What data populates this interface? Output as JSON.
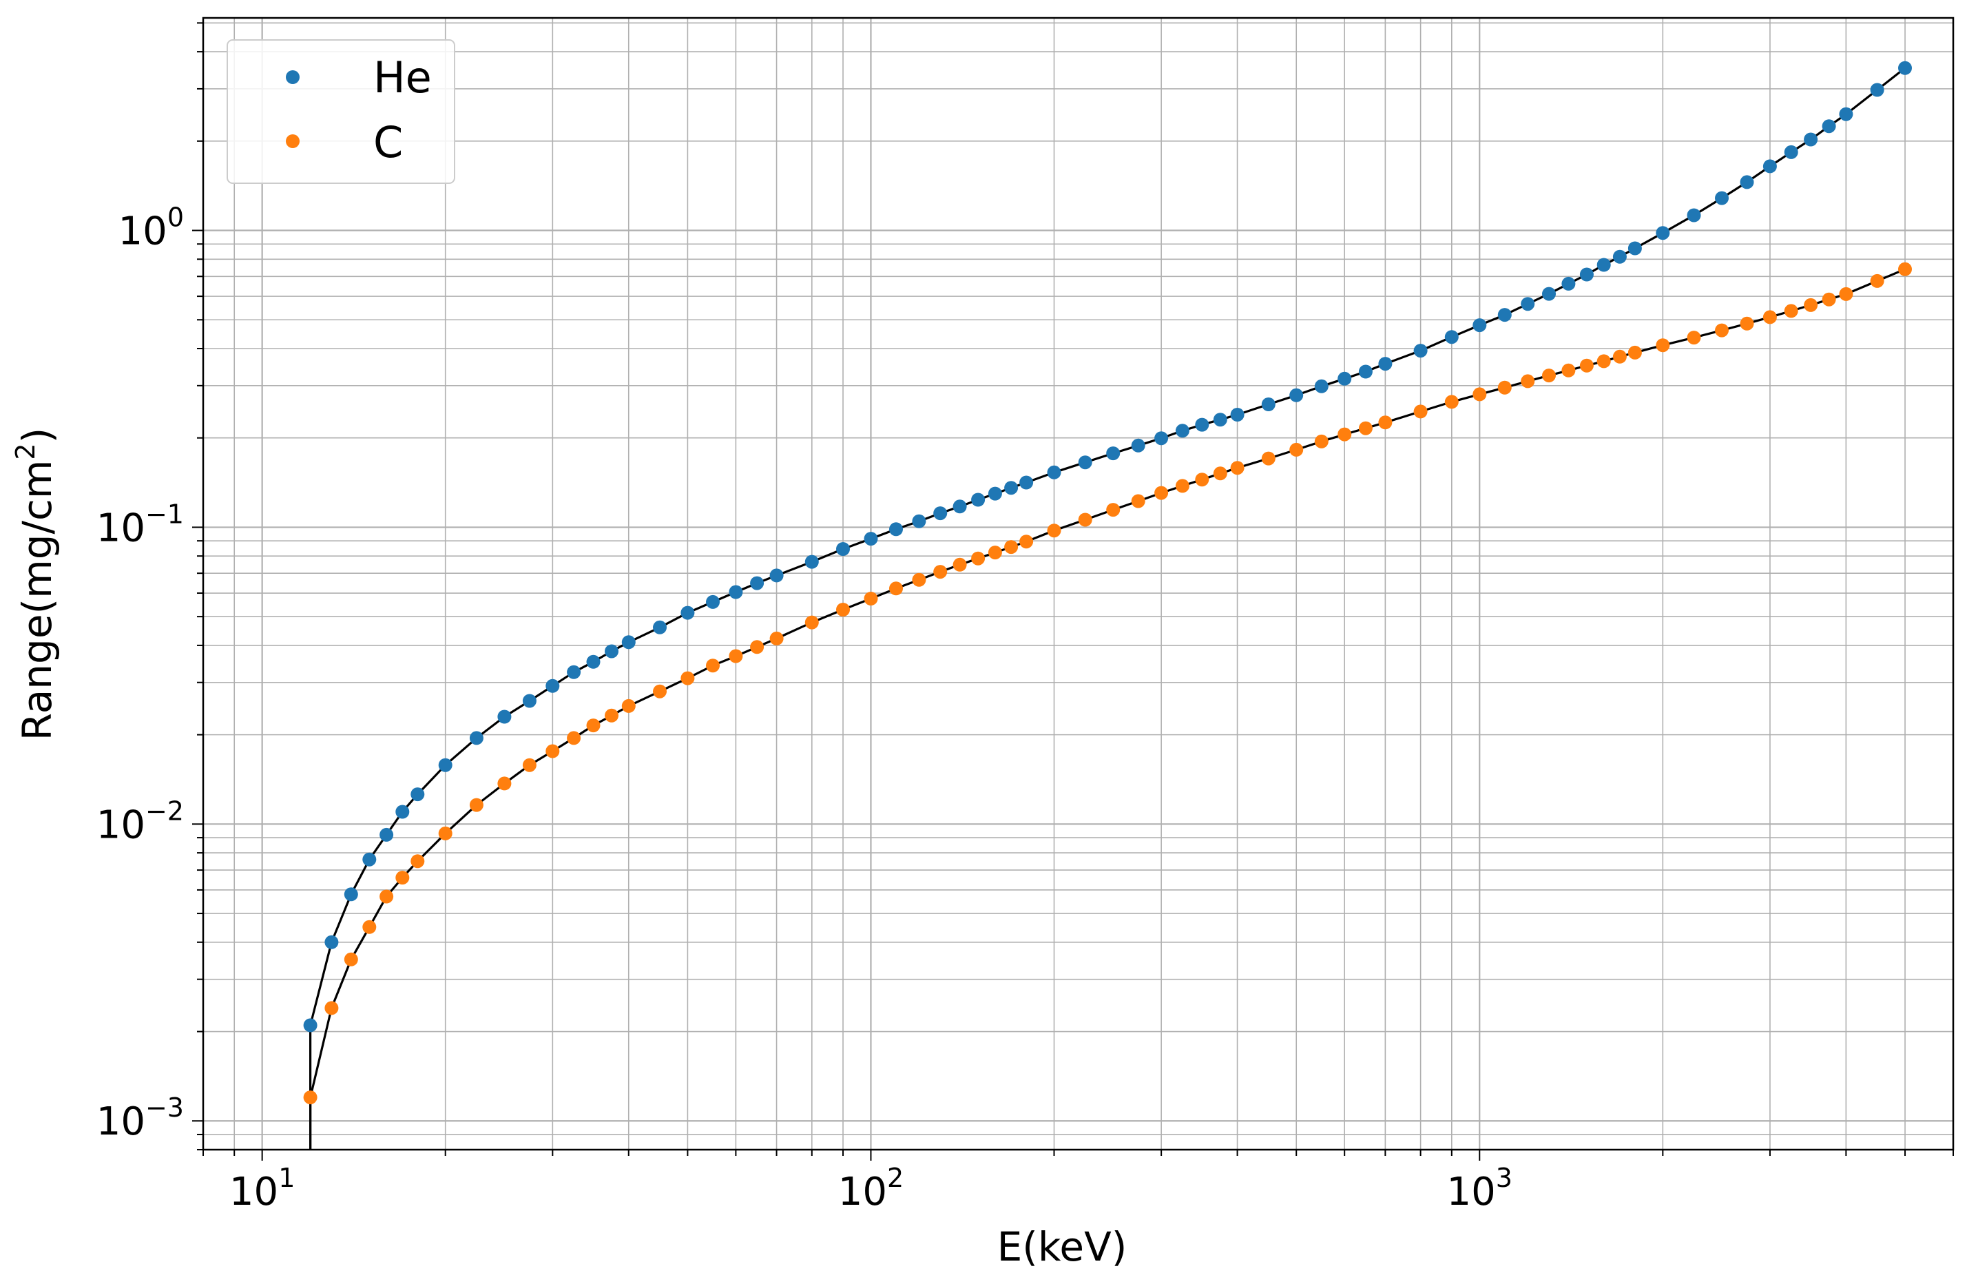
{
  "chart_data": {
    "type": "scatter",
    "title": "",
    "xlabel": "E(keV)",
    "ylabel": "Range(mg/cm²)",
    "ylabel_parts": {
      "base": "Range(mg/cm",
      "sup": "2",
      "close": ")"
    },
    "x_scale": "log",
    "y_scale": "log",
    "xlim": [
      8,
      6000
    ],
    "ylim": [
      0.0008,
      5.2
    ],
    "grid": "major and minor",
    "legend_position": "top-left",
    "x_ticks": [
      {
        "value": 10,
        "base": "10",
        "exp": "1"
      },
      {
        "value": 100,
        "base": "10",
        "exp": "2"
      },
      {
        "value": 1000,
        "base": "10",
        "exp": "3"
      }
    ],
    "y_ticks": [
      {
        "value": 0.001,
        "base": "10",
        "exp": "−3"
      },
      {
        "value": 0.01,
        "base": "10",
        "exp": "−2"
      },
      {
        "value": 0.1,
        "base": "10",
        "exp": "−1"
      },
      {
        "value": 1,
        "base": "10",
        "exp": "0"
      }
    ],
    "fit_line_color": "#000000",
    "series": [
      {
        "name": "He",
        "color": "#1f77b4",
        "x": [
          12,
          13,
          14,
          15,
          16,
          17,
          18,
          20,
          22.5,
          25,
          27.5,
          30,
          32.5,
          35,
          37.5,
          40,
          45,
          50,
          55,
          60,
          65,
          70,
          80,
          90,
          100,
          110,
          120,
          130,
          140,
          150,
          160,
          170,
          180,
          200,
          225,
          250,
          275,
          300,
          325,
          350,
          375,
          400,
          450,
          500,
          550,
          600,
          650,
          700,
          800,
          900,
          1000,
          1100,
          1200,
          1300,
          1400,
          1500,
          1600,
          1700,
          1800,
          2000,
          2250,
          2500,
          2750,
          3000,
          3250,
          3500,
          3750,
          4000,
          4500,
          5000
        ],
        "y": [
          0.0021,
          0.004,
          0.0058,
          0.0076,
          0.0092,
          0.011,
          0.0126,
          0.0158,
          0.0195,
          0.023,
          0.026,
          0.0292,
          0.0325,
          0.0352,
          0.0382,
          0.041,
          0.046,
          0.0515,
          0.056,
          0.0605,
          0.0648,
          0.0688,
          0.0765,
          0.0845,
          0.0915,
          0.0985,
          0.1048,
          0.1115,
          0.1175,
          0.1238,
          0.1298,
          0.1358,
          0.1415,
          0.153,
          0.1655,
          0.1775,
          0.1885,
          0.1995,
          0.2115,
          0.2215,
          0.2305,
          0.2395,
          0.2595,
          0.2785,
          0.2985,
          0.3165,
          0.3345,
          0.3555,
          0.3935,
          0.4375,
          0.4795,
          0.5195,
          0.5655,
          0.6115,
          0.6615,
          0.7105,
          0.7655,
          0.8155,
          0.8705,
          0.9805,
          1.125,
          1.285,
          1.455,
          1.645,
          1.835,
          2.025,
          2.245,
          2.465,
          2.975,
          3.525
        ]
      },
      {
        "name": "C",
        "color": "#ff7f0e",
        "x": [
          12,
          13,
          14,
          15,
          16,
          17,
          18,
          20,
          22.5,
          25,
          27.5,
          30,
          32.5,
          35,
          37.5,
          40,
          45,
          50,
          55,
          60,
          65,
          70,
          80,
          90,
          100,
          110,
          120,
          130,
          140,
          150,
          160,
          170,
          180,
          200,
          225,
          250,
          275,
          300,
          325,
          350,
          375,
          400,
          450,
          500,
          550,
          600,
          650,
          700,
          800,
          900,
          1000,
          1100,
          1200,
          1300,
          1400,
          1500,
          1600,
          1700,
          1800,
          2000,
          2250,
          2500,
          2750,
          3000,
          3250,
          3500,
          3750,
          4000,
          4500,
          5000
        ],
        "y": [
          0.0012,
          0.0024,
          0.0035,
          0.0045,
          0.0057,
          0.0066,
          0.0075,
          0.0093,
          0.0116,
          0.0137,
          0.0158,
          0.0176,
          0.0195,
          0.0215,
          0.0232,
          0.025,
          0.028,
          0.031,
          0.0342,
          0.0368,
          0.0395,
          0.0422,
          0.0478,
          0.0528,
          0.0575,
          0.0622,
          0.0665,
          0.0708,
          0.0748,
          0.0785,
          0.0822,
          0.0858,
          0.0895,
          0.0975,
          0.106,
          0.1145,
          0.1225,
          0.1305,
          0.1378,
          0.1448,
          0.1518,
          0.1585,
          0.1705,
          0.1825,
          0.1945,
          0.2055,
          0.2155,
          0.2255,
          0.2455,
          0.2645,
          0.2805,
          0.2955,
          0.3105,
          0.3245,
          0.3375,
          0.3505,
          0.3625,
          0.3755,
          0.3875,
          0.4105,
          0.4355,
          0.4605,
          0.4855,
          0.5105,
          0.5355,
          0.5605,
          0.5855,
          0.6105,
          0.6755,
          0.7405
        ]
      }
    ]
  }
}
